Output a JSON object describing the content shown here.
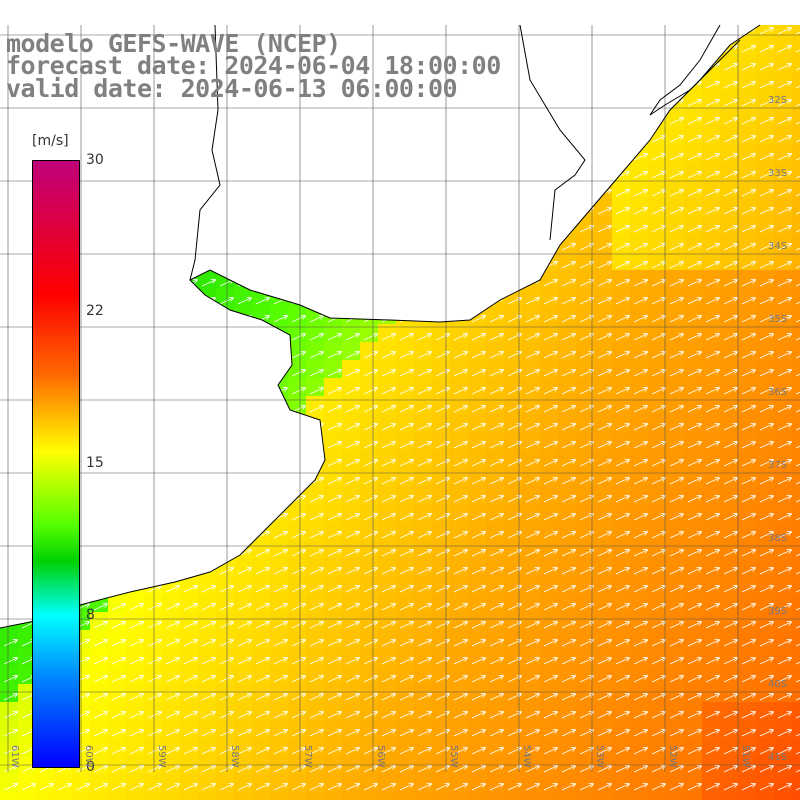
{
  "title": {
    "line1": "modelo GEFS-WAVE (NCEP)",
    "line2": "forecast date: 2024-06-04 18:00:00",
    "line3": "valid date: 2024-06-13 06:00:00"
  },
  "colorbar": {
    "unit": "[m/s]",
    "ticks": [
      "30",
      "22",
      "15",
      "8",
      "0"
    ],
    "colors": [
      "#c0007a",
      "#ff0000",
      "#ff6600",
      "#ffff00",
      "#55ff00",
      "#00d000",
      "#00ffff",
      "#0088ff",
      "#0000ff"
    ]
  },
  "lat_labels": [
    "32S",
    "33S",
    "34S",
    "35S",
    "36S",
    "37S",
    "38S",
    "39S",
    "40S",
    "41S"
  ],
  "lon_labels": [
    "61W",
    "60W",
    "59W",
    "58W",
    "57W",
    "56W",
    "55W",
    "54W",
    "53W",
    "52W",
    "51W"
  ],
  "land_color": "#ffffff",
  "arrow_color": "#ffffff",
  "coast_color": "#000000"
}
